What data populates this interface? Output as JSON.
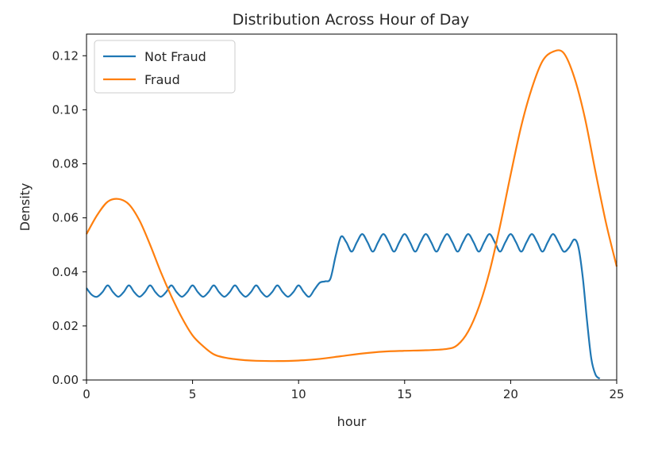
{
  "chart_data": {
    "type": "line",
    "title": "Distribution Across Hour of Day",
    "xlabel": "hour",
    "ylabel": "Density",
    "xlim": [
      0,
      25
    ],
    "ylim": [
      0,
      0.128
    ],
    "xticks": [
      0,
      5,
      10,
      15,
      20,
      25
    ],
    "xtick_labels": [
      "0",
      "5",
      "10",
      "15",
      "20",
      "25"
    ],
    "yticks": [
      0,
      0.02,
      0.04,
      0.06,
      0.08,
      0.1,
      0.12
    ],
    "ytick_labels": [
      "0.00",
      "0.02",
      "0.04",
      "0.06",
      "0.08",
      "0.10",
      "0.12"
    ],
    "grid": false,
    "legend_position": "top-left",
    "series": [
      {
        "name": "Not Fraud",
        "color": "#1f77b4",
        "x": [
          0,
          0.25,
          0.5,
          0.75,
          1,
          1.25,
          1.5,
          1.75,
          2,
          2.25,
          2.5,
          2.75,
          3,
          3.25,
          3.5,
          3.75,
          4,
          4.25,
          4.5,
          4.75,
          5,
          5.25,
          5.5,
          5.75,
          6,
          6.25,
          6.5,
          6.75,
          7,
          7.25,
          7.5,
          7.75,
          8,
          8.25,
          8.5,
          8.75,
          9,
          9.25,
          9.5,
          9.75,
          10,
          10.25,
          10.5,
          10.75,
          11,
          11.25,
          11.5,
          11.75,
          12,
          12.25,
          12.5,
          12.75,
          13,
          13.25,
          13.5,
          13.75,
          14,
          14.25,
          14.5,
          14.75,
          15,
          15.25,
          15.5,
          15.75,
          16,
          16.25,
          16.5,
          16.75,
          17,
          17.25,
          17.5,
          17.75,
          18,
          18.25,
          18.5,
          18.75,
          19,
          19.25,
          19.5,
          19.75,
          20,
          20.25,
          20.5,
          20.75,
          21,
          21.25,
          21.5,
          21.75,
          22,
          22.25,
          22.5,
          22.75,
          23,
          23.2,
          23.4,
          23.6,
          23.8,
          24,
          24.2
        ],
        "values": [
          0.034,
          0.0315,
          0.0308,
          0.0325,
          0.035,
          0.0325,
          0.0308,
          0.0325,
          0.035,
          0.0325,
          0.0308,
          0.0325,
          0.035,
          0.0325,
          0.0308,
          0.0325,
          0.035,
          0.0325,
          0.0308,
          0.0325,
          0.035,
          0.0325,
          0.0308,
          0.0325,
          0.035,
          0.0325,
          0.0308,
          0.0325,
          0.035,
          0.0325,
          0.0308,
          0.0325,
          0.035,
          0.0325,
          0.0308,
          0.0325,
          0.035,
          0.0325,
          0.0308,
          0.0325,
          0.035,
          0.0325,
          0.0308,
          0.0335,
          0.036,
          0.0365,
          0.0375,
          0.046,
          0.053,
          0.051,
          0.0475,
          0.051,
          0.054,
          0.051,
          0.0475,
          0.051,
          0.054,
          0.051,
          0.0475,
          0.051,
          0.054,
          0.051,
          0.0475,
          0.051,
          0.054,
          0.051,
          0.0475,
          0.051,
          0.054,
          0.051,
          0.0475,
          0.051,
          0.054,
          0.051,
          0.0475,
          0.051,
          0.054,
          0.051,
          0.0475,
          0.051,
          0.054,
          0.051,
          0.0475,
          0.051,
          0.054,
          0.051,
          0.0475,
          0.051,
          0.054,
          0.051,
          0.0475,
          0.049,
          0.052,
          0.049,
          0.038,
          0.022,
          0.008,
          0.002,
          0.0005
        ]
      },
      {
        "name": "Fraud",
        "color": "#ff7f0e",
        "x": [
          0,
          0.5,
          1,
          1.5,
          2,
          2.5,
          3,
          3.5,
          4,
          4.5,
          5,
          5.5,
          6,
          6.5,
          7,
          7.5,
          8,
          9,
          10,
          11,
          12,
          13,
          14,
          15,
          16,
          17,
          17.5,
          18,
          18.5,
          19,
          19.5,
          20,
          20.5,
          21,
          21.5,
          22,
          22.5,
          23,
          23.5,
          24,
          24.5,
          25
        ],
        "values": [
          0.054,
          0.061,
          0.066,
          0.067,
          0.065,
          0.059,
          0.05,
          0.04,
          0.031,
          0.023,
          0.0165,
          0.0125,
          0.0095,
          0.0083,
          0.0077,
          0.0073,
          0.0071,
          0.007,
          0.0072,
          0.0078,
          0.0088,
          0.0098,
          0.0105,
          0.0108,
          0.011,
          0.0115,
          0.013,
          0.018,
          0.027,
          0.04,
          0.057,
          0.076,
          0.094,
          0.108,
          0.118,
          0.1215,
          0.121,
          0.112,
          0.097,
          0.077,
          0.058,
          0.042
        ]
      }
    ]
  }
}
